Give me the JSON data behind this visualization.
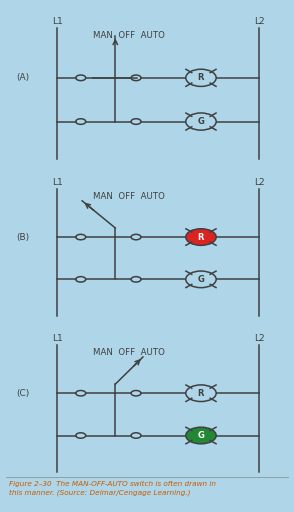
{
  "bg_color": "#aed6e8",
  "white_bg": "#f5f5f0",
  "line_color": "#404040",
  "caption": "Figure 2–30  The MAN-OFF-AUTO switch is often drawn in\nthis manner. (Source: Delmar/Cengage Learning.)",
  "caption_color": "#c85a00",
  "panels": [
    {
      "label": "A",
      "switch_pos": "OFF",
      "R_color": "#aed6e8",
      "G_color": "#aed6e8",
      "R_text_color": "#404040",
      "G_text_color": "#404040"
    },
    {
      "label": "B",
      "switch_pos": "MAN",
      "R_color": "#dd2222",
      "G_color": "#aed6e8",
      "R_text_color": "#ffffff",
      "G_text_color": "#404040"
    },
    {
      "label": "C",
      "switch_pos": "AUTO",
      "R_color": "#aed6e8",
      "G_color": "#228833",
      "R_text_color": "#404040",
      "G_text_color": "#ffffff"
    }
  ]
}
